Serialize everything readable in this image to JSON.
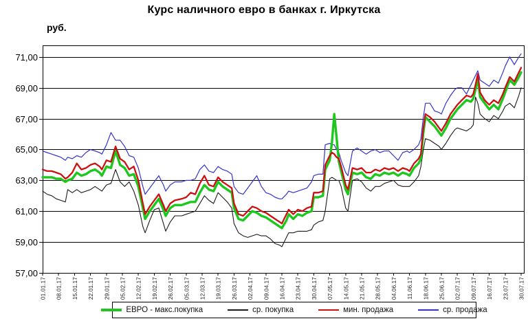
{
  "chart_data": {
    "type": "line",
    "title": "Курс наличного евро в банках г. Иркутска",
    "ylabel": "руб.",
    "grid": "horizontal-only",
    "legend_position": "bottom",
    "ylim": [
      57,
      71.75
    ],
    "xlim_days": [
      0,
      211
    ],
    "y_ticks": [
      {
        "value": 71,
        "label": "71,00"
      },
      {
        "value": 69,
        "label": "69,00"
      },
      {
        "value": 67,
        "label": "67,00"
      },
      {
        "value": 65,
        "label": "65,00"
      },
      {
        "value": 63,
        "label": "63,00"
      },
      {
        "value": 61,
        "label": "61,00"
      },
      {
        "value": 59,
        "label": "59,00"
      },
      {
        "value": 57,
        "label": "57,00"
      }
    ],
    "x_tick_labels": [
      "01.01.17",
      "08.01.17",
      "15.01.17",
      "22.01.17",
      "29.01.17",
      "05.02.17",
      "12.02.17",
      "19.02.17",
      "26.02.17",
      "05.03.17",
      "12.03.17",
      "19.03.17",
      "26.03.17",
      "02.04.17",
      "09.04.17",
      "16.04.17",
      "23.04.17",
      "30.04.17",
      "07.05.17",
      "14.05.17",
      "21.05.17",
      "28.05.17",
      "04.06.17",
      "11.06.17",
      "18.06.17",
      "25.06.17",
      "02.07.17",
      "09.07.17",
      "16.07.17",
      "23.07.17",
      "30.07.17"
    ],
    "x_tick_interval_days": 7,
    "series": [
      {
        "id": "max-buy",
        "name": "ЕВРО - макс.покупка",
        "color": "#1EC71E",
        "width": 3.4,
        "z": 2,
        "column": "max_buy"
      },
      {
        "id": "avg-buy",
        "name": "ср. покупка",
        "color": "#1a1a1a",
        "width": 1.1,
        "z": 0,
        "column": "avg_buy"
      },
      {
        "id": "min-sell",
        "name": "мин. продажа",
        "color": "#CC1010",
        "width": 2.3,
        "z": 3,
        "column": "min_sell"
      },
      {
        "id": "avg-sell",
        "name": "ср. продажа",
        "color": "#3333CC",
        "width": 1.2,
        "z": 1,
        "column": "avg_sell"
      }
    ],
    "columns": [
      "day",
      "max_buy",
      "avg_buy",
      "min_sell",
      "avg_sell"
    ],
    "rows": [
      [
        0,
        63.2,
        62.3,
        63.7,
        64.9
      ],
      [
        2,
        63.2,
        62.1,
        63.6,
        64.8
      ],
      [
        4,
        63.2,
        62.0,
        63.6,
        64.7
      ],
      [
        6,
        63.1,
        61.8,
        63.5,
        64.6
      ],
      [
        8,
        63.1,
        61.7,
        63.4,
        64.5
      ],
      [
        10,
        62.9,
        61.6,
        63.1,
        64.3
      ],
      [
        11,
        63.0,
        62.4,
        63.2,
        64.5
      ],
      [
        13,
        63.1,
        62.2,
        63.5,
        64.4
      ],
      [
        15,
        63.5,
        62.4,
        64.1,
        64.6
      ],
      [
        17,
        63.3,
        62.2,
        63.7,
        64.5
      ],
      [
        19,
        63.4,
        62.3,
        63.8,
        64.8
      ],
      [
        21,
        63.6,
        62.4,
        64.0,
        65.0
      ],
      [
        23,
        63.7,
        62.6,
        64.1,
        64.9
      ],
      [
        25,
        63.5,
        62.4,
        63.9,
        64.8
      ],
      [
        26,
        63.3,
        62.3,
        63.7,
        64.7
      ],
      [
        28,
        63.9,
        62.7,
        64.3,
        65.3
      ],
      [
        30,
        63.8,
        62.8,
        64.2,
        66.1
      ],
      [
        32,
        64.9,
        63.7,
        65.2,
        65.6
      ],
      [
        34,
        64.0,
        62.9,
        64.4,
        65.6
      ],
      [
        36,
        63.8,
        62.6,
        64.2,
        65.2
      ],
      [
        38,
        63.3,
        62.9,
        63.7,
        64.6
      ],
      [
        40,
        63.4,
        62.3,
        63.9,
        64.5
      ],
      [
        42,
        62.6,
        61.4,
        63.0,
        63.8
      ],
      [
        44,
        61.2,
        60.0,
        61.5,
        62.6
      ],
      [
        45,
        60.5,
        59.6,
        60.8,
        62.1
      ],
      [
        47,
        61.0,
        60.4,
        61.3,
        62.5
      ],
      [
        49,
        61.4,
        61.1,
        61.7,
        62.9
      ],
      [
        51,
        61.8,
        61.2,
        62.1,
        63.3
      ],
      [
        53,
        61.1,
        60.2,
        61.4,
        62.7
      ],
      [
        54,
        60.7,
        59.7,
        61.0,
        62.3
      ],
      [
        56,
        61.2,
        60.3,
        61.5,
        62.7
      ],
      [
        58,
        61.4,
        60.7,
        61.7,
        62.9
      ],
      [
        61,
        61.4,
        60.7,
        61.8,
        62.9
      ],
      [
        63,
        61.5,
        60.8,
        61.9,
        63.0
      ],
      [
        65,
        61.6,
        60.9,
        62.2,
        63.0
      ],
      [
        67,
        61.6,
        61.0,
        62.1,
        63.1
      ],
      [
        69,
        62.2,
        61.5,
        62.8,
        63.7
      ],
      [
        71,
        62.7,
        62.0,
        63.3,
        64.0
      ],
      [
        73,
        62.4,
        61.7,
        62.7,
        63.6
      ],
      [
        75,
        62.3,
        61.5,
        62.6,
        63.5
      ],
      [
        77,
        62.9,
        62.2,
        63.2,
        63.9
      ],
      [
        79,
        62.6,
        61.9,
        62.9,
        63.7
      ],
      [
        81,
        62.4,
        61.6,
        62.7,
        63.6
      ],
      [
        83,
        62.2,
        61.2,
        62.5,
        63.4
      ],
      [
        84,
        61.2,
        60.2,
        61.5,
        62.6
      ],
      [
        86,
        60.5,
        59.6,
        60.8,
        62.2
      ],
      [
        88,
        60.4,
        59.4,
        60.7,
        62.1
      ],
      [
        90,
        60.7,
        59.3,
        61.0,
        62.5
      ],
      [
        92,
        61.0,
        59.4,
        61.3,
        62.9
      ],
      [
        94,
        60.9,
        59.5,
        61.2,
        63.3
      ],
      [
        96,
        60.7,
        59.4,
        61.0,
        62.6
      ],
      [
        98,
        60.6,
        59.4,
        60.9,
        62.2
      ],
      [
        100,
        60.4,
        59.2,
        60.7,
        62.1
      ],
      [
        102,
        60.2,
        58.9,
        60.5,
        61.9
      ],
      [
        104,
        60.0,
        58.8,
        60.3,
        61.8
      ],
      [
        105,
        59.9,
        58.7,
        60.2,
        61.8
      ],
      [
        107,
        60.4,
        59.3,
        60.8,
        62.1
      ],
      [
        108,
        60.8,
        59.6,
        61.1,
        62.3
      ],
      [
        110,
        60.5,
        59.6,
        60.8,
        62.2
      ],
      [
        112,
        60.8,
        59.7,
        61.1,
        62.3
      ],
      [
        114,
        60.7,
        59.7,
        61.0,
        62.4
      ],
      [
        116,
        60.9,
        59.7,
        61.2,
        62.5
      ],
      [
        118,
        61.0,
        59.8,
        61.3,
        62.9
      ],
      [
        119,
        61.9,
        60.1,
        62.2,
        63.3
      ],
      [
        121,
        61.9,
        60.3,
        62.2,
        63.4
      ],
      [
        123,
        62.0,
        60.4,
        62.3,
        63.4
      ],
      [
        124,
        63.7,
        61.0,
        64.0,
        65.3
      ],
      [
        126,
        64.3,
        63.1,
        64.6,
        65.4
      ],
      [
        127,
        65.5,
        63.2,
        64.8,
        65.3
      ],
      [
        128,
        67.3,
        63.1,
        64.7,
        65.3
      ],
      [
        129,
        65.8,
        63.0,
        64.5,
        65.0
      ],
      [
        130,
        64.2,
        63.0,
        64.4,
        64.8
      ],
      [
        131,
        63.6,
        62.6,
        63.9,
        64.3
      ],
      [
        133,
        62.4,
        61.2,
        62.7,
        63.5
      ],
      [
        134,
        62.1,
        61.0,
        62.4,
        63.3
      ],
      [
        136,
        63.5,
        63.0,
        63.8,
        64.9
      ],
      [
        138,
        63.4,
        63.1,
        63.7,
        65.1
      ],
      [
        140,
        63.5,
        62.9,
        63.8,
        64.9
      ],
      [
        142,
        63.2,
        62.5,
        63.5,
        64.7
      ],
      [
        144,
        63.1,
        62.3,
        63.5,
        64.9
      ],
      [
        146,
        63.4,
        62.6,
        63.7,
        65.0
      ],
      [
        148,
        63.3,
        62.6,
        63.6,
        64.8
      ],
      [
        150,
        63.5,
        62.8,
        63.8,
        64.9
      ],
      [
        152,
        63.4,
        62.9,
        63.7,
        64.9
      ],
      [
        154,
        63.5,
        63.0,
        63.8,
        64.6
      ],
      [
        156,
        63.3,
        62.7,
        63.6,
        64.3
      ],
      [
        158,
        63.5,
        62.6,
        63.8,
        64.8
      ],
      [
        160,
        63.4,
        62.6,
        63.7,
        64.9
      ],
      [
        161,
        63.3,
        62.6,
        63.6,
        64.8
      ],
      [
        163,
        63.8,
        62.9,
        64.1,
        65.0
      ],
      [
        165,
        64.1,
        63.3,
        64.4,
        65.3
      ],
      [
        166,
        64.4,
        63.9,
        64.7,
        65.7
      ],
      [
        167,
        66.0,
        64.9,
        66.3,
        67.0
      ],
      [
        168,
        67.1,
        65.7,
        67.3,
        68.0
      ],
      [
        170,
        66.8,
        65.6,
        67.1,
        68.0
      ],
      [
        172,
        66.5,
        65.4,
        66.8,
        67.5
      ],
      [
        174,
        66.1,
        65.2,
        66.4,
        67.4
      ],
      [
        175,
        65.9,
        65.0,
        66.2,
        67.3
      ],
      [
        177,
        66.4,
        65.4,
        66.7,
        68.0
      ],
      [
        179,
        67.0,
        65.9,
        67.3,
        68.5
      ],
      [
        181,
        67.4,
        66.3,
        67.7,
        68.9
      ],
      [
        182,
        67.6,
        66.4,
        67.9,
        69.0
      ],
      [
        184,
        67.9,
        66.3,
        68.2,
        69.0
      ],
      [
        186,
        68.2,
        66.2,
        68.5,
        68.6
      ],
      [
        188,
        68.1,
        66.4,
        68.4,
        69.2
      ],
      [
        189,
        68.3,
        66.6,
        68.6,
        69.5
      ],
      [
        190,
        68.9,
        68.4,
        69.2,
        69.8
      ],
      [
        191,
        69.6,
        68.0,
        69.9,
        70.1
      ],
      [
        192,
        68.4,
        67.3,
        68.7,
        69.5
      ],
      [
        194,
        68.0,
        67.0,
        68.2,
        69.3
      ],
      [
        196,
        67.6,
        66.8,
        67.9,
        69.1
      ],
      [
        198,
        67.9,
        67.2,
        68.2,
        69.5
      ],
      [
        200,
        67.6,
        67.0,
        68.0,
        69.3
      ],
      [
        202,
        68.3,
        67.5,
        68.6,
        70.0
      ],
      [
        203,
        68.7,
        67.8,
        69.0,
        70.4
      ],
      [
        205,
        69.5,
        68.0,
        69.7,
        71.0
      ],
      [
        207,
        69.2,
        67.7,
        69.4,
        70.5
      ],
      [
        209,
        69.7,
        68.5,
        70.0,
        71.0
      ],
      [
        210,
        70.0,
        69.0,
        70.3,
        71.2
      ]
    ]
  }
}
